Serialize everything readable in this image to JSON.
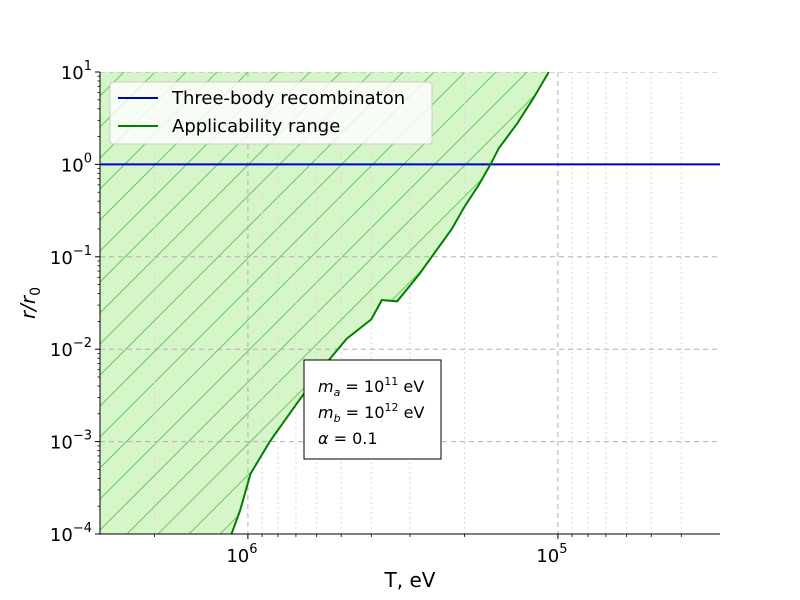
{
  "chart_data": {
    "type": "line",
    "title": "",
    "xlabel": "T, eV",
    "ylabel": "r/r",
    "ylabel_subscript": "0",
    "x_scale": "log",
    "y_scale": "log",
    "x_axis_reversed": true,
    "xlim": [
      3000000,
      30000
    ],
    "ylim": [
      0.0001,
      10
    ],
    "x_ticks": [
      {
        "value": 1000000,
        "base": "10",
        "exp": "6"
      },
      {
        "value": 100000,
        "base": "10",
        "exp": "5"
      }
    ],
    "y_ticks": [
      {
        "value": 10,
        "base": "10",
        "exp": "1"
      },
      {
        "value": 1,
        "base": "10",
        "exp": "0"
      },
      {
        "value": 0.1,
        "base": "10",
        "exp": "−1"
      },
      {
        "value": 0.01,
        "base": "10",
        "exp": "−2"
      },
      {
        "value": 0.001,
        "base": "10",
        "exp": "−3"
      },
      {
        "value": 0.0001,
        "base": "10",
        "exp": "−4"
      }
    ],
    "grid": true,
    "legend_position": "top-left",
    "series": [
      {
        "name": "Three-body recombinaton",
        "color": "#0000cc",
        "x": [
          3000000,
          30000
        ],
        "y": [
          1,
          1
        ]
      },
      {
        "name": "Applicability range",
        "color": "#008000",
        "fill": "#d6f5c8",
        "hatch_color": "#66cc66",
        "x": [
          1130000,
          1060000,
          980000,
          850000,
          700000,
          560000,
          480000,
          400000,
          370000,
          330000,
          280000,
          250000,
          220000,
          200000,
          180000,
          165000,
          155000,
          135000,
          120000,
          107000
        ],
        "y": [
          0.0001,
          0.00018,
          0.00045,
          0.001,
          0.0025,
          0.007,
          0.013,
          0.021,
          0.034,
          0.033,
          0.065,
          0.11,
          0.2,
          0.35,
          0.6,
          1.0,
          1.5,
          2.8,
          5.2,
          10
        ]
      }
    ],
    "annotation": {
      "lines": [
        {
          "sym": "m",
          "sub": "a",
          "eq": " = 10",
          "sup": "11",
          "unit": " eV"
        },
        {
          "sym": "m",
          "sub": "b",
          "eq": " = 10",
          "sup": "12",
          "unit": " eV"
        },
        {
          "sym": "α",
          "sub": "",
          "eq": " = 0.1",
          "sup": "",
          "unit": ""
        }
      ]
    }
  }
}
